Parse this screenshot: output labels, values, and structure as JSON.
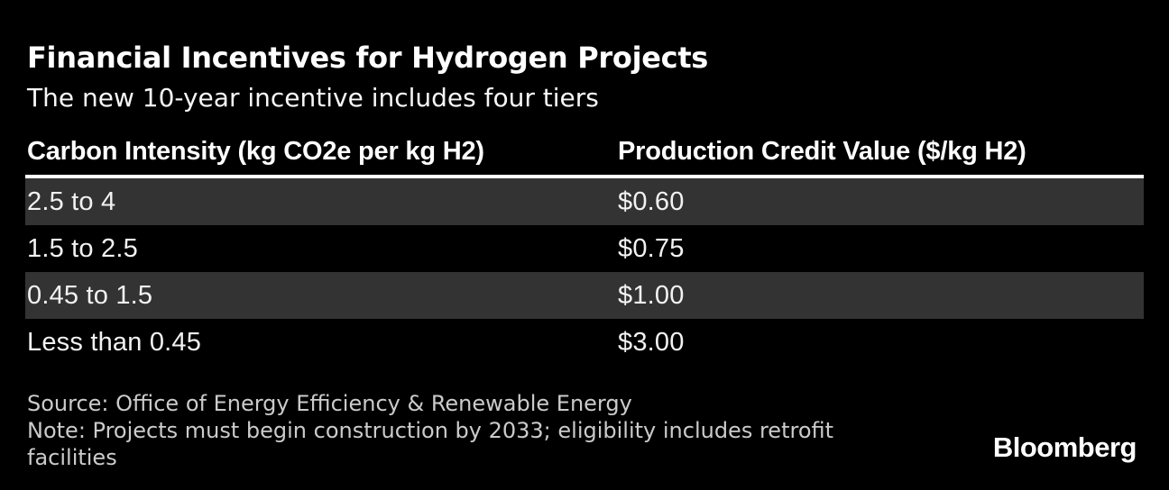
{
  "title": "Financial Incentives for Hydrogen Projects",
  "subtitle": "The new 10-year incentive includes four tiers",
  "table": {
    "columns": [
      "Carbon Intensity (kg CO2e per kg H2)",
      "Production Credit Value ($/kg H2)"
    ],
    "rows": [
      {
        "carbon_intensity": "2.5 to 4",
        "credit_value": "$0.60"
      },
      {
        "carbon_intensity": "1.5 to 2.5",
        "credit_value": "$0.75"
      },
      {
        "carbon_intensity": "0.45 to 1.5",
        "credit_value": "$1.00"
      },
      {
        "carbon_intensity": "Less than 0.45",
        "credit_value": "$3.00"
      }
    ]
  },
  "chart_data": {
    "type": "table",
    "title": "Financial Incentives for Hydrogen Projects",
    "subtitle": "The new 10-year incentive includes four tiers",
    "columns": [
      "Carbon Intensity (kg CO2e per kg H2)",
      "Production Credit Value ($/kg H2)"
    ],
    "rows": [
      [
        "2.5 to 4",
        "$0.60"
      ],
      [
        "1.5 to 2.5",
        "$0.75"
      ],
      [
        "0.45 to 1.5",
        "$1.00"
      ],
      [
        "Less than 0.45",
        "$3.00"
      ]
    ],
    "credit_values_numeric_usd_per_kg": [
      0.6,
      0.75,
      1.0,
      3.0
    ]
  },
  "footer": {
    "source": "Source: Office of Energy Efficiency & Renewable Energy",
    "note": "Note: Projects must begin construction by 2033; eligibility includes retrofit facilities"
  },
  "branding": {
    "logo_text": "Bloomberg"
  },
  "colors": {
    "background": "#000000",
    "row_shaded": "#333333",
    "divider": "#ffffff",
    "title_text": "#ffffff",
    "muted_text": "#cbcbcb"
  }
}
